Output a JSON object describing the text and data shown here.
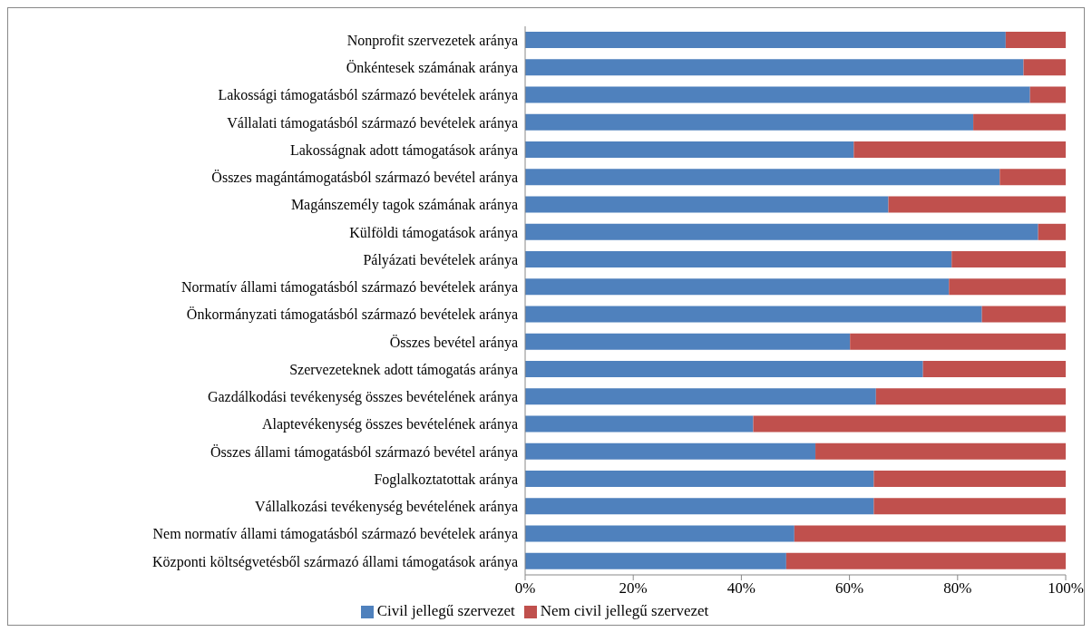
{
  "chart_data": {
    "type": "bar",
    "orientation": "horizontal",
    "stacked": true,
    "categories": [
      "Nonprofit szervezetek aránya",
      "Önkéntesek számának aránya",
      "Lakossági támogatásból származó bevételek aránya",
      "Vállalati támogatásból származó bevételek aránya",
      "Lakosságnak adott támogatások aránya",
      "Összes magántámogatásból származó bevétel aránya",
      "Magánszemély tagok számának aránya",
      "Külföldi támogatások aránya",
      "Pályázati bevételek aránya",
      "Normatív állami támogatásból származó bevételek aránya",
      "Önkormányzati támogatásból származó bevételek aránya",
      "Összes bevétel aránya",
      "Szervezeteknek adott támogatás aránya",
      "Gazdálkodási tevékenység összes bevételének aránya",
      "Alaptevékenység összes bevételének aránya",
      "Összes állami támogatásból származó bevétel aránya",
      "Foglalkoztatottak aránya",
      "Vállalkozási tevékenység bevételének aránya",
      "Nem normatív állami támogatásból származó bevételek aránya",
      "Központi költségvetésből származó állami támogatások aránya"
    ],
    "series": [
      {
        "name": "Civil jellegű szervezet",
        "color": "#4f81bd",
        "values": [
          88.9,
          92.2,
          93.4,
          82.9,
          60.8,
          87.8,
          67.2,
          94.9,
          78.9,
          78.4,
          84.5,
          60.1,
          73.6,
          64.9,
          42.2,
          53.7,
          64.5,
          64.5,
          49.8,
          48.3
        ]
      },
      {
        "name": "Nem civil jellegű szervezet",
        "color": "#c0504d",
        "values": [
          11.1,
          7.8,
          6.6,
          17.1,
          39.2,
          12.2,
          32.8,
          5.1,
          21.1,
          21.6,
          15.5,
          39.9,
          26.4,
          35.1,
          57.8,
          46.3,
          35.5,
          35.5,
          50.2,
          51.7
        ]
      }
    ],
    "xlim": [
      0,
      100
    ],
    "xticks": [
      {
        "value": 0,
        "label": "0%"
      },
      {
        "value": 20,
        "label": "20%"
      },
      {
        "value": 40,
        "label": "40%"
      },
      {
        "value": 60,
        "label": "60%"
      },
      {
        "value": 80,
        "label": "80%"
      },
      {
        "value": 100,
        "label": "100%"
      }
    ],
    "grid": false,
    "legend": "bottom"
  }
}
